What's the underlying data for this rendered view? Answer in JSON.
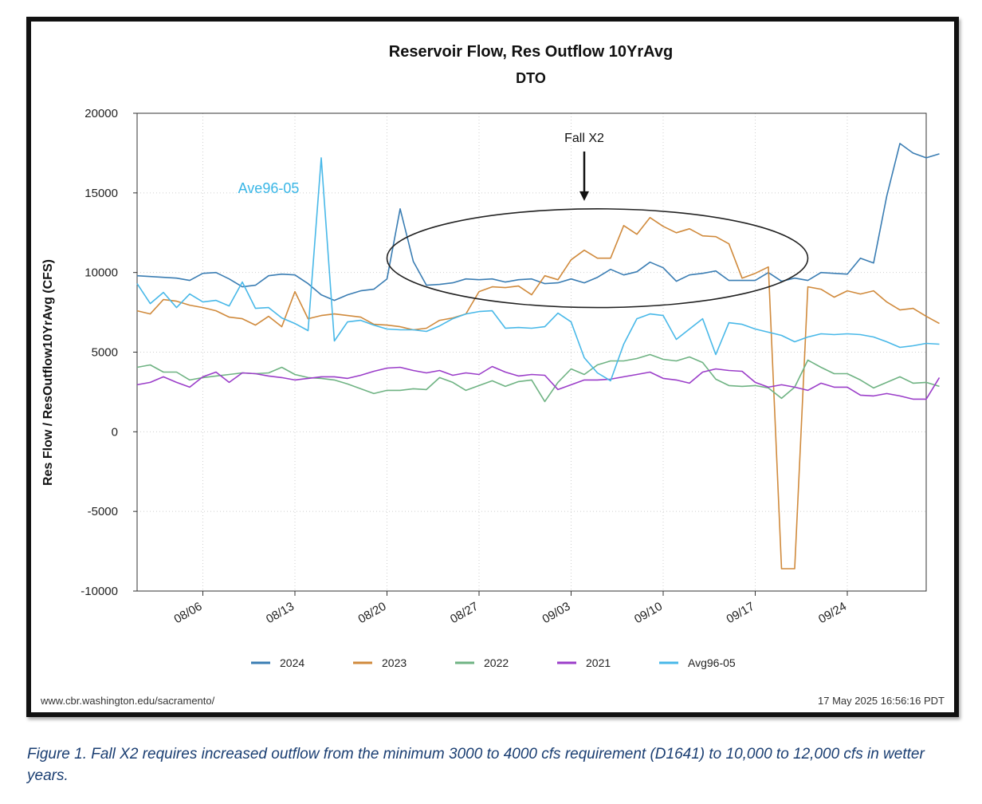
{
  "footer": {
    "source": "www.cbr.washington.edu/sacramento/",
    "timestamp": "17 May 2025 16:56:16 PDT"
  },
  "caption": "Figure 1.  Fall X2 requires increased outflow from the minimum 3000 to 4000 cfs requirement (D1641) to 10,000 to 12,000 cfs in wetter years.",
  "chart_data": {
    "type": "line",
    "title": "Reservoir Flow, Res Outflow 10YrAvg",
    "subtitle": "DTO",
    "xlabel": "",
    "ylabel": "Res Flow / ResOutflow10YrAvg (CFS)",
    "ylim": [
      -10000,
      20000
    ],
    "yticks": [
      "20000",
      "15000",
      "10000",
      "5000",
      "0",
      "-5000",
      "-10000"
    ],
    "x_start": "08/01",
    "xlim": [
      "08/01",
      "09/30"
    ],
    "xticks": [
      "08/06",
      "08/13",
      "08/20",
      "08/27",
      "09/03",
      "09/10",
      "09/17",
      "09/24"
    ],
    "grid": true,
    "legend_position": "bottom",
    "annotations": [
      {
        "text": "Fall X2",
        "x": "09/04",
        "y": 18200,
        "arrow_to": [
          "09/04",
          14500
        ]
      },
      {
        "text": "Ave96-05",
        "x": "08/11",
        "y": 15000,
        "color": "#39b6e6"
      }
    ],
    "highlight_ellipse": {
      "center": [
        "09/05",
        10900
      ],
      "x_radius_days": 16,
      "y_radius": 3100
    },
    "series": [
      {
        "name": "2024",
        "color": "#3a7db3",
        "values": [
          9800,
          9750,
          9700,
          9650,
          9500,
          9950,
          10000,
          9600,
          9100,
          9200,
          9800,
          9900,
          9850,
          9300,
          8600,
          8250,
          8600,
          8850,
          8950,
          9600,
          14000,
          10700,
          9200,
          9250,
          9350,
          9600,
          9550,
          9600,
          9400,
          9550,
          9600,
          9300,
          9350,
          9600,
          9350,
          9700,
          10200,
          9850,
          10050,
          10650,
          10300,
          9450,
          9850,
          9950,
          10100,
          9500,
          9500,
          9500,
          10000,
          9450,
          9650,
          9500,
          10000,
          9950,
          9900,
          10900,
          10600,
          14800,
          18100,
          17500,
          17200,
          17450
        ]
      },
      {
        "name": "2023",
        "color": "#d08a3c",
        "values": [
          7600,
          7400,
          8300,
          8200,
          7950,
          7800,
          7600,
          7200,
          7100,
          6700,
          7250,
          6600,
          8800,
          7100,
          7300,
          7400,
          7300,
          7200,
          6750,
          6700,
          6600,
          6400,
          6500,
          7000,
          7150,
          7400,
          8800,
          9100,
          9050,
          9150,
          8600,
          9800,
          9550,
          10800,
          11400,
          10900,
          10900,
          12950,
          12400,
          13450,
          12900,
          12500,
          12750,
          12300,
          12250,
          11800,
          9650,
          9950,
          10350,
          -8600,
          -8600,
          9100,
          8950,
          8450,
          8850,
          8650,
          8850,
          8150,
          7650,
          7750,
          7250,
          6800
        ]
      },
      {
        "name": "2022",
        "color": "#6fb383",
        "values": [
          4050,
          4200,
          3750,
          3750,
          3250,
          3400,
          3500,
          3600,
          3700,
          3650,
          3700,
          4050,
          3600,
          3400,
          3350,
          3250,
          3000,
          2700,
          2400,
          2600,
          2600,
          2700,
          2650,
          3400,
          3100,
          2600,
          2900,
          3200,
          2850,
          3150,
          3250,
          1900,
          3100,
          3950,
          3600,
          4200,
          4450,
          4450,
          4600,
          4850,
          4550,
          4450,
          4700,
          4350,
          3300,
          2900,
          2850,
          2900,
          2750,
          2100,
          2800,
          4500,
          4050,
          3650,
          3650,
          3250,
          2750,
          3100,
          3450,
          3050,
          3100,
          2850
        ]
      },
      {
        "name": "2021",
        "color": "#9b3ec9",
        "values": [
          2950,
          3100,
          3450,
          3100,
          2800,
          3450,
          3750,
          3100,
          3700,
          3650,
          3500,
          3400,
          3250,
          3350,
          3450,
          3450,
          3350,
          3550,
          3800,
          4000,
          4050,
          3850,
          3700,
          3850,
          3550,
          3700,
          3600,
          4100,
          3750,
          3500,
          3600,
          3550,
          2650,
          2950,
          3250,
          3250,
          3300,
          3450,
          3600,
          3750,
          3350,
          3250,
          3050,
          3750,
          3950,
          3850,
          3800,
          3100,
          2800,
          2950,
          2800,
          2600,
          3050,
          2800,
          2800,
          2300,
          2250,
          2400,
          2250,
          2050,
          2050,
          3400
        ]
      },
      {
        "name": "Avg96-05",
        "color": "#48b8e8",
        "values": [
          9300,
          8050,
          8750,
          7800,
          8650,
          8150,
          8250,
          7900,
          9400,
          7750,
          7800,
          7150,
          6800,
          6350,
          17200,
          5700,
          6900,
          7000,
          6700,
          6450,
          6400,
          6400,
          6300,
          6650,
          7100,
          7400,
          7550,
          7600,
          6500,
          6550,
          6500,
          6600,
          7450,
          6900,
          4650,
          3700,
          3200,
          5500,
          7100,
          7400,
          7300,
          5800,
          6450,
          7100,
          4850,
          6850,
          6750,
          6450,
          6250,
          6050,
          5650,
          5950,
          6150,
          6100,
          6150,
          6100,
          5950,
          5650,
          5300,
          5400,
          5550,
          5500
        ]
      }
    ]
  }
}
